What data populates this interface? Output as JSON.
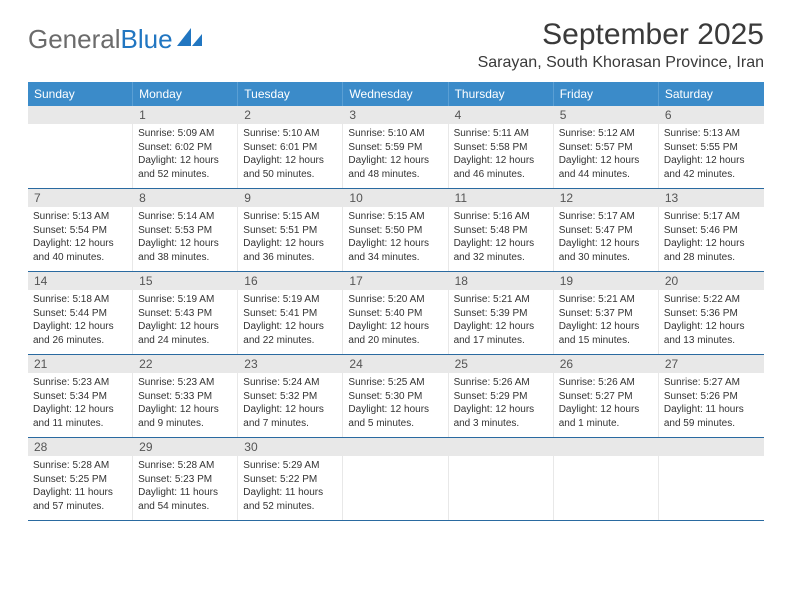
{
  "brand": {
    "part1": "General",
    "part2": "Blue"
  },
  "title": "September 2025",
  "location": "Sarayan, South Khorasan Province, Iran",
  "colors": {
    "header_bg": "#3b8bc9",
    "header_text": "#ffffff",
    "daynum_bg": "#e8e8e8",
    "week_border": "#2a6aa0",
    "logo_gray": "#6b6b6b",
    "logo_blue": "#2176c1"
  },
  "weekdays": [
    "Sunday",
    "Monday",
    "Tuesday",
    "Wednesday",
    "Thursday",
    "Friday",
    "Saturday"
  ],
  "weeks": [
    [
      {
        "n": "",
        "sr": "",
        "ss": "",
        "dl": ""
      },
      {
        "n": "1",
        "sr": "Sunrise: 5:09 AM",
        "ss": "Sunset: 6:02 PM",
        "dl": "Daylight: 12 hours and 52 minutes."
      },
      {
        "n": "2",
        "sr": "Sunrise: 5:10 AM",
        "ss": "Sunset: 6:01 PM",
        "dl": "Daylight: 12 hours and 50 minutes."
      },
      {
        "n": "3",
        "sr": "Sunrise: 5:10 AM",
        "ss": "Sunset: 5:59 PM",
        "dl": "Daylight: 12 hours and 48 minutes."
      },
      {
        "n": "4",
        "sr": "Sunrise: 5:11 AM",
        "ss": "Sunset: 5:58 PM",
        "dl": "Daylight: 12 hours and 46 minutes."
      },
      {
        "n": "5",
        "sr": "Sunrise: 5:12 AM",
        "ss": "Sunset: 5:57 PM",
        "dl": "Daylight: 12 hours and 44 minutes."
      },
      {
        "n": "6",
        "sr": "Sunrise: 5:13 AM",
        "ss": "Sunset: 5:55 PM",
        "dl": "Daylight: 12 hours and 42 minutes."
      }
    ],
    [
      {
        "n": "7",
        "sr": "Sunrise: 5:13 AM",
        "ss": "Sunset: 5:54 PM",
        "dl": "Daylight: 12 hours and 40 minutes."
      },
      {
        "n": "8",
        "sr": "Sunrise: 5:14 AM",
        "ss": "Sunset: 5:53 PM",
        "dl": "Daylight: 12 hours and 38 minutes."
      },
      {
        "n": "9",
        "sr": "Sunrise: 5:15 AM",
        "ss": "Sunset: 5:51 PM",
        "dl": "Daylight: 12 hours and 36 minutes."
      },
      {
        "n": "10",
        "sr": "Sunrise: 5:15 AM",
        "ss": "Sunset: 5:50 PM",
        "dl": "Daylight: 12 hours and 34 minutes."
      },
      {
        "n": "11",
        "sr": "Sunrise: 5:16 AM",
        "ss": "Sunset: 5:48 PM",
        "dl": "Daylight: 12 hours and 32 minutes."
      },
      {
        "n": "12",
        "sr": "Sunrise: 5:17 AM",
        "ss": "Sunset: 5:47 PM",
        "dl": "Daylight: 12 hours and 30 minutes."
      },
      {
        "n": "13",
        "sr": "Sunrise: 5:17 AM",
        "ss": "Sunset: 5:46 PM",
        "dl": "Daylight: 12 hours and 28 minutes."
      }
    ],
    [
      {
        "n": "14",
        "sr": "Sunrise: 5:18 AM",
        "ss": "Sunset: 5:44 PM",
        "dl": "Daylight: 12 hours and 26 minutes."
      },
      {
        "n": "15",
        "sr": "Sunrise: 5:19 AM",
        "ss": "Sunset: 5:43 PM",
        "dl": "Daylight: 12 hours and 24 minutes."
      },
      {
        "n": "16",
        "sr": "Sunrise: 5:19 AM",
        "ss": "Sunset: 5:41 PM",
        "dl": "Daylight: 12 hours and 22 minutes."
      },
      {
        "n": "17",
        "sr": "Sunrise: 5:20 AM",
        "ss": "Sunset: 5:40 PM",
        "dl": "Daylight: 12 hours and 20 minutes."
      },
      {
        "n": "18",
        "sr": "Sunrise: 5:21 AM",
        "ss": "Sunset: 5:39 PM",
        "dl": "Daylight: 12 hours and 17 minutes."
      },
      {
        "n": "19",
        "sr": "Sunrise: 5:21 AM",
        "ss": "Sunset: 5:37 PM",
        "dl": "Daylight: 12 hours and 15 minutes."
      },
      {
        "n": "20",
        "sr": "Sunrise: 5:22 AM",
        "ss": "Sunset: 5:36 PM",
        "dl": "Daylight: 12 hours and 13 minutes."
      }
    ],
    [
      {
        "n": "21",
        "sr": "Sunrise: 5:23 AM",
        "ss": "Sunset: 5:34 PM",
        "dl": "Daylight: 12 hours and 11 minutes."
      },
      {
        "n": "22",
        "sr": "Sunrise: 5:23 AM",
        "ss": "Sunset: 5:33 PM",
        "dl": "Daylight: 12 hours and 9 minutes."
      },
      {
        "n": "23",
        "sr": "Sunrise: 5:24 AM",
        "ss": "Sunset: 5:32 PM",
        "dl": "Daylight: 12 hours and 7 minutes."
      },
      {
        "n": "24",
        "sr": "Sunrise: 5:25 AM",
        "ss": "Sunset: 5:30 PM",
        "dl": "Daylight: 12 hours and 5 minutes."
      },
      {
        "n": "25",
        "sr": "Sunrise: 5:26 AM",
        "ss": "Sunset: 5:29 PM",
        "dl": "Daylight: 12 hours and 3 minutes."
      },
      {
        "n": "26",
        "sr": "Sunrise: 5:26 AM",
        "ss": "Sunset: 5:27 PM",
        "dl": "Daylight: 12 hours and 1 minute."
      },
      {
        "n": "27",
        "sr": "Sunrise: 5:27 AM",
        "ss": "Sunset: 5:26 PM",
        "dl": "Daylight: 11 hours and 59 minutes."
      }
    ],
    [
      {
        "n": "28",
        "sr": "Sunrise: 5:28 AM",
        "ss": "Sunset: 5:25 PM",
        "dl": "Daylight: 11 hours and 57 minutes."
      },
      {
        "n": "29",
        "sr": "Sunrise: 5:28 AM",
        "ss": "Sunset: 5:23 PM",
        "dl": "Daylight: 11 hours and 54 minutes."
      },
      {
        "n": "30",
        "sr": "Sunrise: 5:29 AM",
        "ss": "Sunset: 5:22 PM",
        "dl": "Daylight: 11 hours and 52 minutes."
      },
      {
        "n": "",
        "sr": "",
        "ss": "",
        "dl": ""
      },
      {
        "n": "",
        "sr": "",
        "ss": "",
        "dl": ""
      },
      {
        "n": "",
        "sr": "",
        "ss": "",
        "dl": ""
      },
      {
        "n": "",
        "sr": "",
        "ss": "",
        "dl": ""
      }
    ]
  ]
}
